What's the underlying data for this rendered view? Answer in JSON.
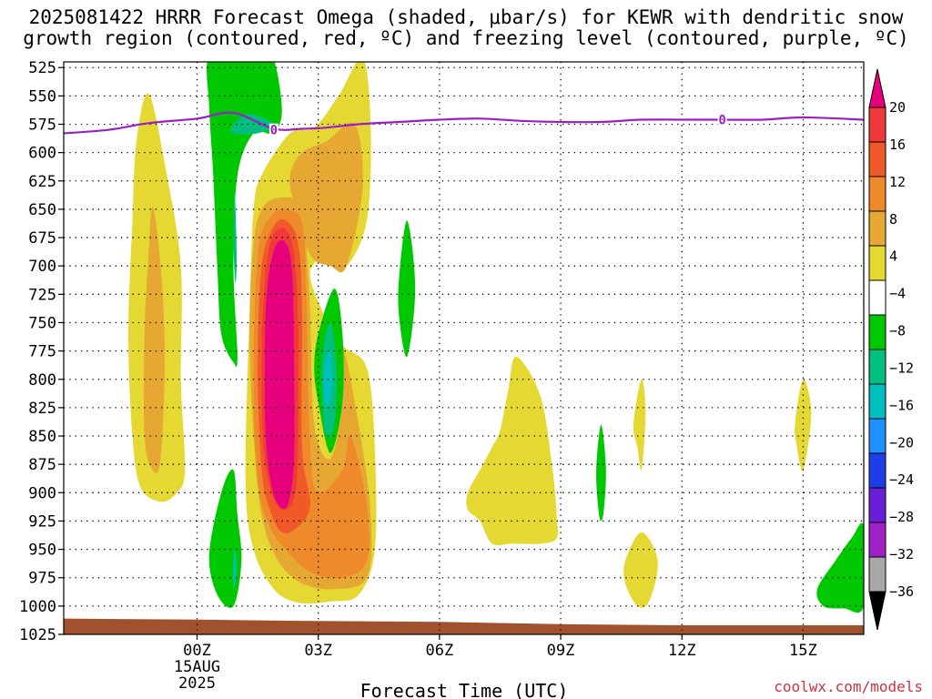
{
  "title": {
    "line1": "2025081422 HRRR Forecast Omega (shaded, μbar/s) for KEWR with dendritic snow",
    "line2": "growth region (contoured, red, ºC) and freezing level (contoured, purple, ºC)"
  },
  "credit": "coolwx.com/models",
  "chart_data": {
    "type": "time-height contour",
    "xlabel": "Forecast Time (UTC)",
    "x_units": "hours relative to 2025-08-15 00Z",
    "xlim": [
      -3.3,
      16.5
    ],
    "x_ticks": [
      {
        "value": 0,
        "label": "00Z",
        "sub": [
          "15AUG",
          "2025"
        ]
      },
      {
        "value": 3,
        "label": "03Z"
      },
      {
        "value": 6,
        "label": "06Z"
      },
      {
        "value": 9,
        "label": "09Z"
      },
      {
        "value": 12,
        "label": "12Z"
      },
      {
        "value": 15,
        "label": "15Z"
      }
    ],
    "y_units": "hPa (pressure)",
    "ylim": [
      1025,
      520
    ],
    "y_ticks": [
      525,
      550,
      575,
      600,
      625,
      650,
      675,
      700,
      725,
      750,
      775,
      800,
      825,
      850,
      875,
      900,
      925,
      950,
      975,
      1000,
      1025
    ],
    "grid": true,
    "colorbar": {
      "labels": [
        "20",
        "16",
        "12",
        "8",
        "4",
        "−4",
        "−8",
        "−12",
        "−16",
        "−20",
        "−24",
        "−28",
        "−32",
        "−36"
      ],
      "bins": [
        {
          "color": "#e6007e"
        },
        {
          "color": "#ee3a3a"
        },
        {
          "color": "#f05a28"
        },
        {
          "color": "#ee8a2a"
        },
        {
          "color": "#e6a833"
        },
        {
          "color": "#e6d832"
        },
        {
          "color": "#ffffff"
        },
        {
          "color": "#00c800"
        },
        {
          "color": "#00bf7f"
        },
        {
          "color": "#00bfbf"
        },
        {
          "color": "#1e90ff"
        },
        {
          "color": "#1e3ee6"
        },
        {
          "color": "#6a1fd6"
        },
        {
          "color": "#a020c8"
        },
        {
          "color": "#a8a8a8"
        },
        {
          "color": "#000000"
        }
      ]
    },
    "freezing_level": {
      "color": "#9b1fc7",
      "label": "0",
      "points": [
        [
          -3.3,
          583
        ],
        [
          -2.2,
          580
        ],
        [
          -1.2,
          574
        ],
        [
          0.0,
          570
        ],
        [
          0.9,
          565
        ],
        [
          1.9,
          579
        ],
        [
          2.6,
          579
        ],
        [
          3.2,
          578
        ],
        [
          4.0,
          575
        ],
        [
          5.0,
          573
        ],
        [
          6.0,
          571
        ],
        [
          7.0,
          570
        ],
        [
          8.0,
          572
        ],
        [
          9.0,
          573
        ],
        [
          10.0,
          573
        ],
        [
          11.0,
          571
        ],
        [
          12.0,
          571
        ],
        [
          13.0,
          571
        ],
        [
          14.0,
          571
        ],
        [
          15.0,
          569
        ],
        [
          16.5,
          571
        ]
      ],
      "label_at": [
        [
          1.9,
          580
        ],
        [
          13.0,
          571
        ]
      ]
    },
    "terrain": {
      "color": "#a0522d",
      "points": [
        [
          -3.3,
          1011
        ],
        [
          0,
          1012
        ],
        [
          2.5,
          1013
        ],
        [
          6,
          1014
        ],
        [
          9,
          1016
        ],
        [
          12,
          1017
        ],
        [
          16.5,
          1017
        ]
      ]
    },
    "omega_regions": [
      {
        "color": "#e6d832",
        "points": [
          [
            -1.2,
            548
          ],
          [
            -0.8,
            610
          ],
          [
            -0.4,
            700
          ],
          [
            -0.4,
            800
          ],
          [
            -0.3,
            880
          ],
          [
            -0.5,
            900
          ],
          [
            -0.9,
            908
          ],
          [
            -1.4,
            895
          ],
          [
            -1.6,
            850
          ],
          [
            -1.7,
            760
          ],
          [
            -1.6,
            660
          ],
          [
            -1.5,
            590
          ]
        ]
      },
      {
        "color": "#e6a833",
        "points": [
          [
            -1.1,
            648
          ],
          [
            -0.9,
            700
          ],
          [
            -0.8,
            780
          ],
          [
            -0.9,
            870
          ],
          [
            -1.1,
            880
          ],
          [
            -1.3,
            850
          ],
          [
            -1.3,
            760
          ],
          [
            -1.2,
            690
          ]
        ]
      },
      {
        "color": "#e6d832",
        "points": [
          [
            4.1,
            517
          ],
          [
            4.3,
            580
          ],
          [
            4.2,
            660
          ],
          [
            3.7,
            700
          ],
          [
            3.3,
            690
          ],
          [
            2.8,
            705
          ],
          [
            3.1,
            740
          ],
          [
            3.6,
            770
          ],
          [
            4.2,
            790
          ],
          [
            4.4,
            860
          ],
          [
            4.4,
            950
          ],
          [
            4.0,
            990
          ],
          [
            3.3,
            996
          ],
          [
            2.5,
            997
          ],
          [
            1.9,
            985
          ],
          [
            1.4,
            950
          ],
          [
            1.2,
            890
          ],
          [
            1.3,
            740
          ],
          [
            1.4,
            650
          ],
          [
            1.6,
            620
          ],
          [
            2.3,
            583
          ],
          [
            2.9,
            578
          ],
          [
            3.5,
            550
          ]
        ]
      },
      {
        "color": "#e6a833",
        "points": [
          [
            3.9,
            575
          ],
          [
            4.1,
            630
          ],
          [
            3.7,
            700
          ],
          [
            3.3,
            700
          ],
          [
            2.8,
            690
          ],
          [
            2.4,
            645
          ],
          [
            2.3,
            620
          ],
          [
            2.6,
            600
          ],
          [
            3.2,
            590
          ]
        ]
      },
      {
        "color": "#e6a833",
        "points": [
          [
            1.4,
            680
          ],
          [
            1.6,
            650
          ],
          [
            2.0,
            640
          ],
          [
            2.6,
            645
          ],
          [
            2.7,
            680
          ],
          [
            2.8,
            740
          ],
          [
            2.9,
            840
          ],
          [
            3.3,
            870
          ],
          [
            3.6,
            820
          ],
          [
            3.6,
            770
          ],
          [
            4.0,
            840
          ],
          [
            4.3,
            920
          ],
          [
            4.2,
            975
          ],
          [
            3.4,
            985
          ],
          [
            2.6,
            980
          ],
          [
            2.0,
            960
          ],
          [
            1.6,
            920
          ],
          [
            1.4,
            850
          ],
          [
            1.3,
            760
          ]
        ]
      },
      {
        "color": "#ee8a2a",
        "points": [
          [
            1.5,
            690
          ],
          [
            1.8,
            657
          ],
          [
            2.2,
            650
          ],
          [
            2.6,
            662
          ],
          [
            2.7,
            720
          ],
          [
            2.8,
            860
          ],
          [
            3.0,
            900
          ],
          [
            3.6,
            880
          ],
          [
            3.8,
            850
          ],
          [
            4.2,
            910
          ],
          [
            4.2,
            960
          ],
          [
            3.6,
            975
          ],
          [
            2.8,
            970
          ],
          [
            2.2,
            950
          ],
          [
            1.8,
            930
          ],
          [
            1.5,
            890
          ],
          [
            1.4,
            800
          ]
        ]
      },
      {
        "color": "#f05a28",
        "points": [
          [
            1.6,
            700
          ],
          [
            1.9,
            665
          ],
          [
            2.2,
            660
          ],
          [
            2.5,
            680
          ],
          [
            2.6,
            740
          ],
          [
            2.6,
            860
          ],
          [
            2.8,
            910
          ],
          [
            2.5,
            930
          ],
          [
            2.1,
            935
          ],
          [
            1.8,
            915
          ],
          [
            1.6,
            880
          ],
          [
            1.5,
            790
          ]
        ]
      },
      {
        "color": "#ee3a3a",
        "points": [
          [
            1.7,
            705
          ],
          [
            1.9,
            672
          ],
          [
            2.2,
            668
          ],
          [
            2.4,
            690
          ],
          [
            2.5,
            750
          ],
          [
            2.5,
            860
          ],
          [
            2.4,
            905
          ],
          [
            2.1,
            915
          ],
          [
            1.85,
            900
          ],
          [
            1.65,
            860
          ],
          [
            1.6,
            780
          ]
        ]
      },
      {
        "color": "#e6007e",
        "points": [
          [
            1.75,
            715
          ],
          [
            1.95,
            682
          ],
          [
            2.2,
            680
          ],
          [
            2.35,
            705
          ],
          [
            2.4,
            780
          ],
          [
            2.4,
            870
          ],
          [
            2.25,
            910
          ],
          [
            2.05,
            912
          ],
          [
            1.85,
            895
          ],
          [
            1.7,
            850
          ],
          [
            1.68,
            770
          ]
        ]
      },
      {
        "color": "#00c800",
        "points": [
          [
            0.3,
            515
          ],
          [
            1.1,
            515
          ],
          [
            1.8,
            510
          ],
          [
            2.1,
            560
          ],
          [
            1.9,
            583
          ],
          [
            1.4,
            583
          ],
          [
            1.0,
            620
          ],
          [
            0.9,
            700
          ],
          [
            1.0,
            780
          ],
          [
            0.9,
            785
          ],
          [
            0.6,
            760
          ],
          [
            0.5,
            700
          ],
          [
            0.4,
            620
          ],
          [
            0.3,
            560
          ]
        ]
      },
      {
        "color": "#00bf7f",
        "points": [
          [
            0.9,
            575
          ],
          [
            1.3,
            566
          ],
          [
            1.9,
            575
          ],
          [
            1.5,
            583
          ],
          [
            0.9,
            583
          ]
        ]
      },
      {
        "color": "#00bf7f",
        "points": [
          [
            0.93,
            635
          ],
          [
            0.98,
            690
          ],
          [
            0.95,
            715
          ],
          [
            0.9,
            680
          ]
        ]
      },
      {
        "color": "#00c800",
        "points": [
          [
            3.0,
            760
          ],
          [
            3.4,
            720
          ],
          [
            3.6,
            760
          ],
          [
            3.6,
            820
          ],
          [
            3.3,
            865
          ],
          [
            3.0,
            820
          ],
          [
            2.9,
            790
          ]
        ]
      },
      {
        "color": "#00bf7f",
        "points": [
          [
            3.1,
            780
          ],
          [
            3.3,
            750
          ],
          [
            3.45,
            790
          ],
          [
            3.4,
            840
          ],
          [
            3.2,
            850
          ],
          [
            3.1,
            820
          ]
        ]
      },
      {
        "color": "#00bfbf",
        "points": [
          [
            3.15,
            792
          ],
          [
            3.3,
            775
          ],
          [
            3.35,
            805
          ],
          [
            3.25,
            825
          ],
          [
            3.15,
            815
          ]
        ]
      },
      {
        "color": "#00c800",
        "points": [
          [
            5.0,
            710
          ],
          [
            5.2,
            660
          ],
          [
            5.4,
            720
          ],
          [
            5.2,
            780
          ],
          [
            5.0,
            745
          ]
        ]
      },
      {
        "color": "#00c800",
        "points": [
          [
            0.3,
            955
          ],
          [
            0.6,
            900
          ],
          [
            0.9,
            880
          ],
          [
            1.0,
            920
          ],
          [
            1.1,
            960
          ],
          [
            0.9,
            1000
          ],
          [
            0.5,
            990
          ]
        ]
      },
      {
        "color": "#00bfbf",
        "points": [
          [
            0.9,
            960
          ],
          [
            0.95,
            950
          ],
          [
            0.97,
            970
          ],
          [
            0.9,
            985
          ]
        ]
      },
      {
        "color": "#e6d832",
        "points": [
          [
            6.7,
            900
          ],
          [
            7.0,
            880
          ],
          [
            7.3,
            860
          ],
          [
            7.5,
            845
          ],
          [
            7.7,
            810
          ],
          [
            7.9,
            780
          ],
          [
            8.5,
            815
          ],
          [
            8.8,
            880
          ],
          [
            8.9,
            920
          ],
          [
            8.9,
            940
          ],
          [
            8.5,
            945
          ],
          [
            7.8,
            945
          ],
          [
            7.3,
            945
          ],
          [
            7.0,
            925
          ],
          [
            6.7,
            915
          ]
        ]
      },
      {
        "color": "#00c800",
        "points": [
          [
            9.88,
            880
          ],
          [
            10.0,
            840
          ],
          [
            10.12,
            880
          ],
          [
            10.05,
            920
          ],
          [
            9.95,
            920
          ]
        ]
      },
      {
        "color": "#e6d832",
        "points": [
          [
            10.8,
            840
          ],
          [
            11.0,
            800
          ],
          [
            11.1,
            830
          ],
          [
            11.0,
            880
          ],
          [
            10.9,
            860
          ]
        ]
      },
      {
        "color": "#e6d832",
        "points": [
          [
            10.6,
            960
          ],
          [
            11.0,
            935
          ],
          [
            11.4,
            960
          ],
          [
            11.2,
            995
          ],
          [
            10.9,
            1000
          ],
          [
            10.6,
            980
          ]
        ]
      },
      {
        "color": "#e6d832",
        "points": [
          [
            14.8,
            840
          ],
          [
            15.0,
            800
          ],
          [
            15.2,
            830
          ],
          [
            15.0,
            880
          ],
          [
            14.85,
            860
          ]
        ]
      },
      {
        "color": "#00c800",
        "points": [
          [
            15.35,
            985
          ],
          [
            15.8,
            960
          ],
          [
            16.2,
            940
          ],
          [
            16.5,
            930
          ],
          [
            16.5,
            1000
          ],
          [
            16.0,
            1002
          ],
          [
            15.5,
            1000
          ]
        ]
      }
    ]
  }
}
